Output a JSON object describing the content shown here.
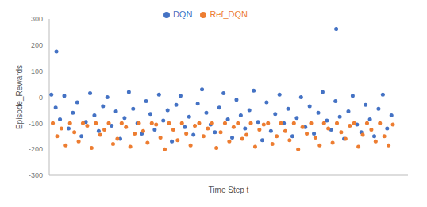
{
  "chart_data": {
    "type": "scatter",
    "x_label": "Time Step t",
    "y_label": "Episode_Rewards",
    "xlim": [
      0,
      1000
    ],
    "ylim": [
      -300,
      300
    ],
    "yticks": [
      -300,
      -200,
      -100,
      0,
      100,
      200,
      300
    ],
    "grid": false,
    "legend": "top",
    "tick_labels": "y",
    "marker": "circle",
    "series": [
      {
        "name": "DQN",
        "color": "#4472c4",
        "x": [
          6,
          18,
          30,
          42,
          54,
          66,
          78,
          90,
          102,
          114,
          126,
          138,
          150,
          162,
          174,
          186,
          198,
          210,
          222,
          234,
          246,
          258,
          270,
          282,
          294,
          306,
          318,
          330,
          342,
          354,
          366,
          378,
          390,
          402,
          414,
          426,
          438,
          450,
          462,
          474,
          486,
          498,
          510,
          522,
          534,
          546,
          558,
          570,
          582,
          594,
          606,
          618,
          630,
          642,
          654,
          666,
          678,
          690,
          702,
          714,
          726,
          738,
          750,
          762,
          774,
          786,
          798,
          810,
          822,
          834,
          846,
          858,
          870,
          882,
          894,
          906,
          918,
          930,
          942,
          954,
          20,
          800
        ],
        "values": [
          10,
          -40,
          -85,
          5,
          -120,
          -60,
          -20,
          -150,
          -95,
          15,
          -70,
          -130,
          -35,
          0,
          -110,
          -55,
          -160,
          -80,
          20,
          -45,
          -100,
          -140,
          -15,
          -65,
          -125,
          10,
          -90,
          -50,
          -170,
          -30,
          5,
          -115,
          -75,
          -145,
          -25,
          30,
          -60,
          -105,
          -135,
          -40,
          15,
          -85,
          -155,
          -10,
          -70,
          -120,
          -50,
          25,
          -95,
          -165,
          -20,
          -130,
          -65,
          10,
          -100,
          -45,
          -150,
          -80,
          0,
          -115,
          -35,
          -140,
          -60,
          20,
          -90,
          -125,
          -15,
          -75,
          -160,
          -55,
          5,
          -105,
          -135,
          -30,
          -85,
          -150,
          -45,
          10,
          -120,
          -70,
          175,
          262
        ]
      },
      {
        "name": "Ref_DQN",
        "color": "#ed7d31",
        "x": [
          10,
          22,
          34,
          46,
          58,
          70,
          82,
          94,
          106,
          118,
          130,
          142,
          154,
          166,
          178,
          190,
          202,
          214,
          226,
          238,
          250,
          262,
          274,
          286,
          298,
          310,
          322,
          334,
          346,
          358,
          370,
          382,
          394,
          406,
          418,
          430,
          442,
          454,
          466,
          478,
          490,
          502,
          514,
          526,
          538,
          550,
          562,
          574,
          586,
          598,
          610,
          622,
          634,
          646,
          658,
          670,
          682,
          694,
          706,
          718,
          730,
          742,
          754,
          766,
          778,
          790,
          802,
          814,
          826,
          838,
          850,
          862,
          874,
          886,
          898,
          910,
          922,
          934,
          946,
          958
        ],
        "values": [
          -100,
          -150,
          -120,
          -185,
          -100,
          -135,
          -170,
          -100,
          -110,
          -195,
          -100,
          -145,
          -125,
          -100,
          -180,
          -160,
          -100,
          -115,
          -190,
          -140,
          -100,
          -130,
          -175,
          -100,
          -105,
          -155,
          -200,
          -100,
          -125,
          -165,
          -100,
          -140,
          -185,
          -110,
          -100,
          -150,
          -120,
          -100,
          -195,
          -135,
          -100,
          -170,
          -115,
          -100,
          -160,
          -145,
          -100,
          -190,
          -125,
          -105,
          -100,
          -180,
          -150,
          -100,
          -130,
          -165,
          -100,
          -200,
          -115,
          -140,
          -100,
          -155,
          -185,
          -100,
          -120,
          -175,
          -100,
          -135,
          -160,
          -110,
          -100,
          -190,
          -145,
          -100,
          -125,
          -170,
          -100,
          -150,
          -185,
          -105
        ]
      }
    ]
  }
}
